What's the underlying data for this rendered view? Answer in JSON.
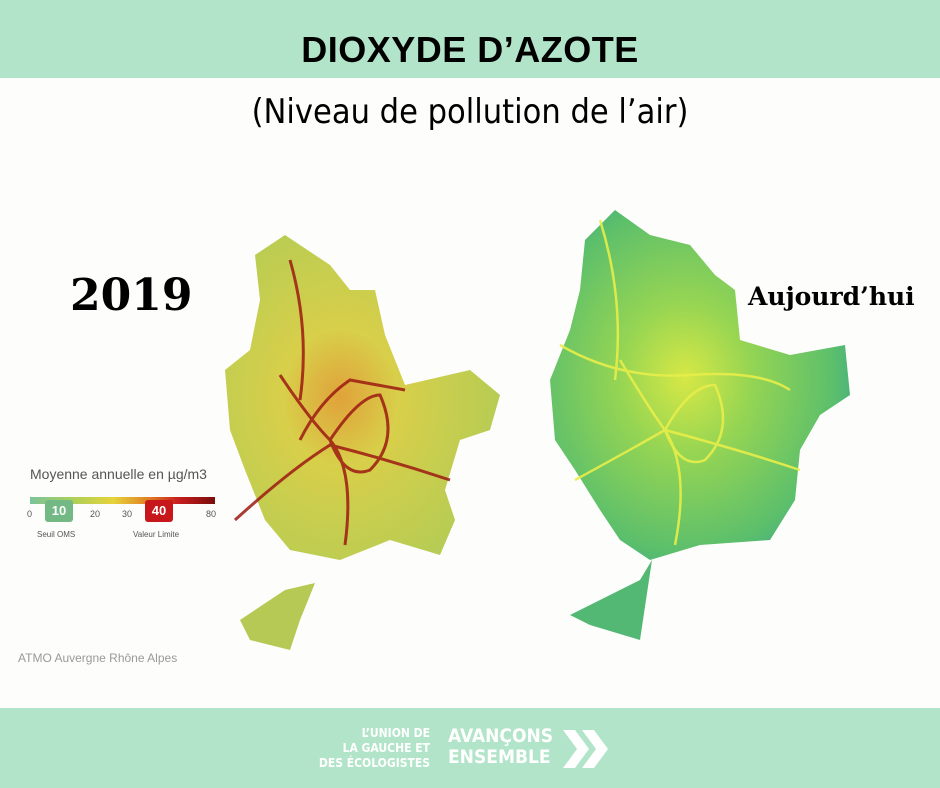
{
  "header": {
    "title": "DIOXYDE D’AZOTE",
    "subtitle": "(Niveau de pollution de l’air)"
  },
  "maps": [
    {
      "label": "2019"
    },
    {
      "label": "Aujourd’hui"
    }
  ],
  "legend": {
    "title": "Moyenne annuelle en µg/m3",
    "ticks": [
      0,
      10,
      20,
      30,
      40,
      80
    ],
    "notes": [
      "Seuil OMS",
      "Valeur Limite"
    ]
  },
  "source": "ATMO Auvergne Rhône Alpes",
  "footer": {
    "org": [
      "L’UNION DE",
      "LA GAUCHE ET",
      "DES ÉCOLOGISTES"
    ],
    "slogan": [
      "AVANÇONS",
      "ENSEMBLE"
    ]
  }
}
